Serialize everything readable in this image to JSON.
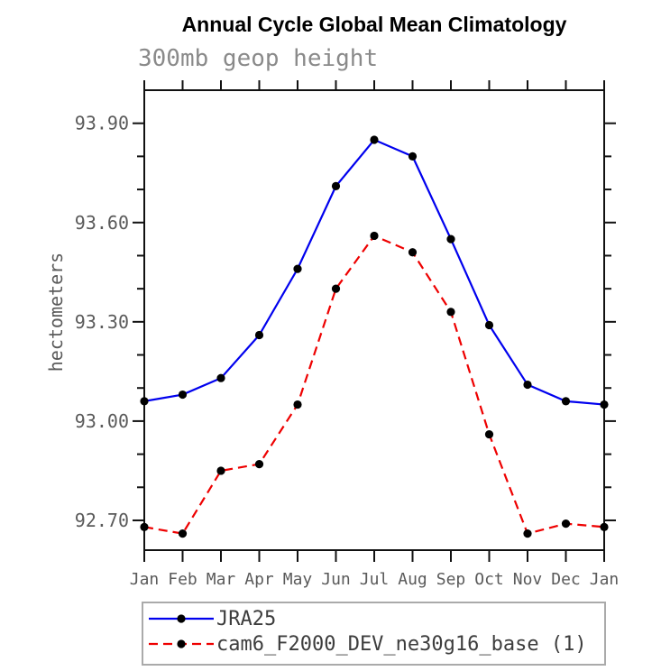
{
  "chart_data": {
    "type": "line",
    "title": "Annual Cycle Global Mean Climatology",
    "subtitle": "300mb geop height",
    "xlabel": "",
    "ylabel": "hectometers",
    "categories": [
      "Jan",
      "Feb",
      "Mar",
      "Apr",
      "May",
      "Jun",
      "Jul",
      "Aug",
      "Sep",
      "Oct",
      "Nov",
      "Dec",
      "Jan"
    ],
    "series": [
      {
        "name": "JRA25",
        "color": "#0000ee",
        "line": "solid",
        "marker": "circle",
        "marker_color": "#000000",
        "values": [
          93.06,
          93.08,
          93.13,
          93.26,
          93.46,
          93.71,
          93.85,
          93.8,
          93.55,
          93.29,
          93.11,
          93.06,
          93.05
        ]
      },
      {
        "name": "cam6_F2000_DEV_ne30g16_base (1)",
        "color": "#ee0000",
        "line": "dashed",
        "marker": "circle",
        "marker_color": "#000000",
        "values": [
          92.68,
          92.66,
          92.85,
          92.87,
          93.05,
          93.4,
          93.56,
          93.51,
          93.33,
          92.96,
          92.66,
          92.69,
          92.68
        ]
      }
    ],
    "ylim": [
      92.61,
      94.0
    ],
    "yticks_major": [
      92.7,
      93.0,
      93.3,
      93.6,
      93.9
    ],
    "ytick_label_format": "2dp",
    "ytick_minor_step": 0.1,
    "grid": false,
    "axis_color": "#111111",
    "tick_label_color": "#5a5a5a",
    "legend_position": "bottom-left-box"
  }
}
